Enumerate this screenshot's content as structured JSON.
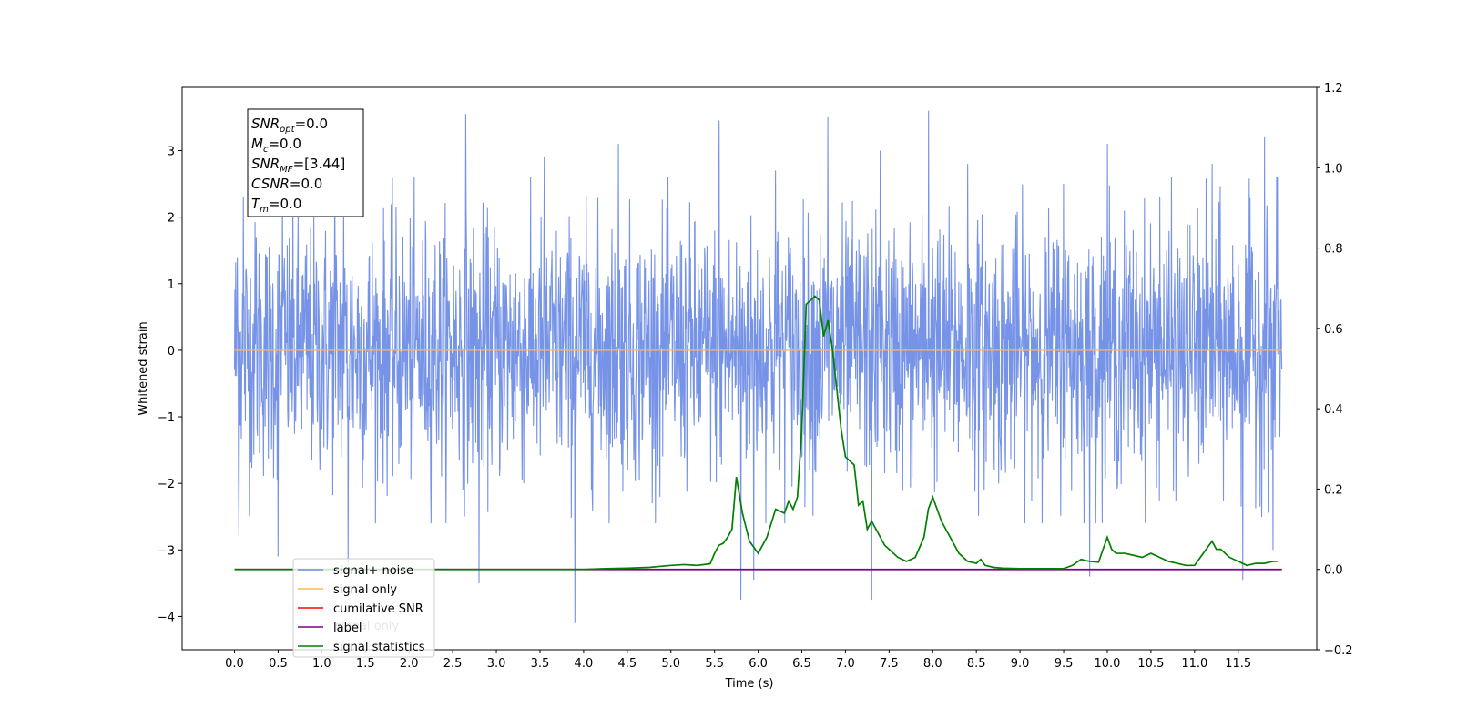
{
  "chart_data": {
    "type": "line",
    "title": "",
    "xlabel": "Time (s)",
    "ylabel": "Whitened strain",
    "xlim": [
      -0.6,
      12.4
    ],
    "ylim": [
      -4.5,
      3.95
    ],
    "y2lim": [
      -0.2,
      1.2
    ],
    "x_ticks": [
      0.0,
      0.5,
      1.0,
      1.5,
      2.0,
      2.5,
      3.0,
      3.5,
      4.0,
      4.5,
      5.0,
      5.5,
      6.0,
      6.5,
      7.0,
      7.5,
      8.0,
      8.5,
      9.0,
      9.5,
      10.0,
      10.5,
      11.0,
      11.5
    ],
    "x_tick_labels": [
      "0.0",
      "0.5",
      "1.0",
      "1.5",
      "2.0",
      "2.5",
      "3.0",
      "3.5",
      "4.0",
      "4.5",
      "5.0",
      "5.5",
      "6.0",
      "6.5",
      "7.0",
      "7.5",
      "8.0",
      "8.5",
      "9.0",
      "9.5",
      "10.0",
      "10.5",
      "11.0",
      "11.5"
    ],
    "y_ticks": [
      -4,
      -3,
      -2,
      -1,
      0,
      1,
      2,
      3
    ],
    "y_tick_labels": [
      "−4",
      "−3",
      "−2",
      "−1",
      "0",
      "1",
      "2",
      "3"
    ],
    "y2_ticks": [
      -0.2,
      0.0,
      0.2,
      0.4,
      0.6,
      0.8,
      1.0,
      1.2
    ],
    "y2_tick_labels": [
      "−0.2",
      "0.0",
      "0.2",
      "0.4",
      "0.6",
      "0.8",
      "1.0",
      "1.2"
    ],
    "grid": false,
    "legend_placement": "lower-left",
    "series": [
      {
        "name": "signal+ noise",
        "axis": "left",
        "color": "#6f8de6",
        "x_range": [
          0.0,
          12.0
        ],
        "typical_envelope": [
          -1.7,
          1.9
        ],
        "peaks": [
          [
            0.03,
            1.4
          ],
          [
            0.1,
            2.3
          ],
          [
            0.25,
            1.7
          ],
          [
            0.55,
            2.4
          ],
          [
            1.15,
            2.6
          ],
          [
            1.25,
            2.2
          ],
          [
            2.65,
            3.55
          ],
          [
            3.55,
            2.9
          ],
          [
            4.4,
            3.1
          ],
          [
            5.55,
            3.45
          ],
          [
            6.2,
            2.7
          ],
          [
            6.8,
            3.5
          ],
          [
            7.4,
            3.0
          ],
          [
            7.95,
            3.6
          ],
          [
            8.4,
            2.8
          ],
          [
            9.5,
            2.5
          ],
          [
            10.0,
            3.1
          ],
          [
            10.6,
            2.3
          ],
          [
            11.2,
            2.8
          ],
          [
            11.8,
            3.2
          ],
          [
            11.95,
            2.6
          ]
        ],
        "troughs": [
          [
            0.05,
            -2.8
          ],
          [
            0.5,
            -3.1
          ],
          [
            1.3,
            -3.2
          ],
          [
            2.8,
            -3.5
          ],
          [
            3.9,
            -4.1
          ],
          [
            5.8,
            -3.75
          ],
          [
            5.95,
            -3.45
          ],
          [
            7.3,
            -3.75
          ],
          [
            9.8,
            -3.4
          ],
          [
            11.55,
            -3.45
          ],
          [
            11.9,
            -3.0
          ]
        ]
      },
      {
        "name": "signal only",
        "axis": "left",
        "color": "#ffb84d",
        "x": [
          0.0,
          12.0
        ],
        "values": [
          0.0,
          0.0
        ]
      },
      {
        "name": "cumilative SNR",
        "axis": "right",
        "color": "#ff0000",
        "x": [
          0.0,
          12.0
        ],
        "values": [
          0.0,
          0.0
        ]
      },
      {
        "name": "label",
        "axis": "right",
        "color": "#800080",
        "x": [
          0.0,
          12.0
        ],
        "values": [
          0.0,
          0.0
        ]
      },
      {
        "name": "signal statistics",
        "axis": "right",
        "color": "#008000",
        "x": [
          0.0,
          0.5,
          1.0,
          1.5,
          2.0,
          2.5,
          3.0,
          3.5,
          4.0,
          4.25,
          4.5,
          4.75,
          5.0,
          5.15,
          5.3,
          5.45,
          5.5,
          5.55,
          5.6,
          5.65,
          5.7,
          5.75,
          5.82,
          5.9,
          6.0,
          6.1,
          6.2,
          6.3,
          6.35,
          6.4,
          6.45,
          6.5,
          6.55,
          6.6,
          6.65,
          6.7,
          6.75,
          6.8,
          6.85,
          6.9,
          6.95,
          7.0,
          7.05,
          7.1,
          7.15,
          7.2,
          7.25,
          7.3,
          7.35,
          7.4,
          7.45,
          7.5,
          7.6,
          7.7,
          7.8,
          7.9,
          7.95,
          8.0,
          8.05,
          8.1,
          8.2,
          8.3,
          8.4,
          8.5,
          8.55,
          8.6,
          8.7,
          8.8,
          9.0,
          9.3,
          9.5,
          9.6,
          9.7,
          9.75,
          9.8,
          9.9,
          10.0,
          10.05,
          10.1,
          10.2,
          10.3,
          10.4,
          10.5,
          10.6,
          10.7,
          10.8,
          10.9,
          11.0,
          11.1,
          11.2,
          11.25,
          11.3,
          11.4,
          11.5,
          11.6,
          11.7,
          11.8,
          11.9,
          11.95
        ],
        "values": [
          0.0,
          0.0,
          0.0,
          0.0,
          0.0,
          0.0,
          0.0,
          0.0,
          0.0,
          0.002,
          0.003,
          0.005,
          0.01,
          0.012,
          0.01,
          0.014,
          0.04,
          0.06,
          0.065,
          0.08,
          0.1,
          0.23,
          0.14,
          0.07,
          0.04,
          0.08,
          0.15,
          0.14,
          0.17,
          0.15,
          0.18,
          0.35,
          0.66,
          0.67,
          0.68,
          0.67,
          0.58,
          0.62,
          0.55,
          0.45,
          0.35,
          0.28,
          0.27,
          0.26,
          0.16,
          0.17,
          0.1,
          0.12,
          0.1,
          0.08,
          0.06,
          0.05,
          0.03,
          0.02,
          0.03,
          0.08,
          0.15,
          0.18,
          0.15,
          0.12,
          0.08,
          0.04,
          0.02,
          0.015,
          0.025,
          0.01,
          0.005,
          0.003,
          0.002,
          0.002,
          0.002,
          0.01,
          0.025,
          0.022,
          0.02,
          0.018,
          0.08,
          0.05,
          0.04,
          0.04,
          0.035,
          0.03,
          0.04,
          0.03,
          0.02,
          0.015,
          0.01,
          0.01,
          0.04,
          0.07,
          0.05,
          0.05,
          0.03,
          0.02,
          0.01,
          0.015,
          0.015,
          0.02,
          0.02
        ]
      }
    ],
    "annotation_box": {
      "lines": [
        {
          "base": "SNR",
          "sub": "opt",
          "rest": "=0.0"
        },
        {
          "base": "M",
          "sub": "c",
          "rest": "=0.0"
        },
        {
          "base": "SNR",
          "sub": "MF",
          "rest": "=[3.44]"
        },
        {
          "base": "CSNR",
          "sub": "",
          "rest": "=0.0"
        },
        {
          "base": "T",
          "sub": "m",
          "rest": "=0.0"
        }
      ]
    },
    "legend": {
      "entries": [
        {
          "label": "signal+ noise",
          "color": "#6f8de6"
        },
        {
          "label": "signal only",
          "color": "#ffb84d"
        },
        {
          "label": "cumilative SNR",
          "color": "#ff0000"
        },
        {
          "label": "label",
          "color": "#800080"
        },
        {
          "label": "signal statistics",
          "color": "#008000"
        }
      ],
      "ghost_text": "signal only"
    }
  }
}
